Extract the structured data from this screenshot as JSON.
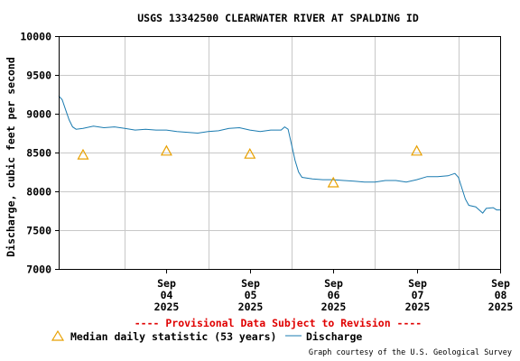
{
  "chart_data": {
    "type": "line",
    "title": "USGS 13342500 CLEARWATER RIVER AT SPALDING ID",
    "ylabel": "Discharge, cubic feet per second",
    "xlabel": "",
    "xlim": [
      "2025-09-03 05:00",
      "2025-09-08 12:00"
    ],
    "ylim": [
      7000,
      10000
    ],
    "grid": true,
    "yticks": [
      "7000",
      "7500",
      "8000",
      "8500",
      "9000",
      "9500",
      "10000"
    ],
    "xticks": [
      {
        "date": "2025-09-04",
        "label": [
          "Sep",
          "04",
          "2025"
        ]
      },
      {
        "date": "2025-09-05",
        "label": [
          "Sep",
          "05",
          "2025"
        ]
      },
      {
        "date": "2025-09-06",
        "label": [
          "Sep",
          "06",
          "2025"
        ]
      },
      {
        "date": "2025-09-07",
        "label": [
          "Sep",
          "07",
          "2025"
        ]
      },
      {
        "date": "2025-09-08",
        "label": [
          "Sep",
          "08",
          "2025"
        ]
      }
    ],
    "series": [
      {
        "name": "Discharge",
        "color": "#1a7bb0",
        "style": "line",
        "points": [
          [
            "2025-09-03 05:00",
            9230
          ],
          [
            "2025-09-03 06:00",
            9180
          ],
          [
            "2025-09-03 07:00",
            9050
          ],
          [
            "2025-09-03 08:00",
            8920
          ],
          [
            "2025-09-03 09:00",
            8830
          ],
          [
            "2025-09-03 10:00",
            8800
          ],
          [
            "2025-09-03 12:00",
            8810
          ],
          [
            "2025-09-03 15:00",
            8840
          ],
          [
            "2025-09-03 18:00",
            8820
          ],
          [
            "2025-09-03 21:00",
            8830
          ],
          [
            "2025-09-04 00:00",
            8810
          ],
          [
            "2025-09-04 03:00",
            8790
          ],
          [
            "2025-09-04 06:00",
            8800
          ],
          [
            "2025-09-04 09:00",
            8790
          ],
          [
            "2025-09-04 12:00",
            8790
          ],
          [
            "2025-09-04 15:00",
            8770
          ],
          [
            "2025-09-04 18:00",
            8760
          ],
          [
            "2025-09-04 21:00",
            8750
          ],
          [
            "2025-09-05 00:00",
            8770
          ],
          [
            "2025-09-05 03:00",
            8780
          ],
          [
            "2025-09-05 06:00",
            8810
          ],
          [
            "2025-09-05 09:00",
            8820
          ],
          [
            "2025-09-05 12:00",
            8790
          ],
          [
            "2025-09-05 15:00",
            8770
          ],
          [
            "2025-09-05 18:00",
            8790
          ],
          [
            "2025-09-05 21:00",
            8790
          ],
          [
            "2025-09-05 22:00",
            8830
          ],
          [
            "2025-09-05 23:00",
            8800
          ],
          [
            "2025-09-06 00:00",
            8600
          ],
          [
            "2025-09-06 01:00",
            8400
          ],
          [
            "2025-09-06 02:00",
            8250
          ],
          [
            "2025-09-06 03:00",
            8180
          ],
          [
            "2025-09-06 06:00",
            8160
          ],
          [
            "2025-09-06 09:00",
            8150
          ],
          [
            "2025-09-06 12:00",
            8150
          ],
          [
            "2025-09-06 15:00",
            8140
          ],
          [
            "2025-09-06 18:00",
            8130
          ],
          [
            "2025-09-06 21:00",
            8120
          ],
          [
            "2025-09-07 00:00",
            8120
          ],
          [
            "2025-09-07 03:00",
            8140
          ],
          [
            "2025-09-07 06:00",
            8140
          ],
          [
            "2025-09-07 09:00",
            8120
          ],
          [
            "2025-09-07 12:00",
            8150
          ],
          [
            "2025-09-07 15:00",
            8190
          ],
          [
            "2025-09-07 18:00",
            8190
          ],
          [
            "2025-09-07 21:00",
            8200
          ],
          [
            "2025-09-07 23:00",
            8230
          ],
          [
            "2025-09-08 00:00",
            8180
          ],
          [
            "2025-09-08 02:00",
            7900
          ],
          [
            "2025-09-08 03:00",
            7820
          ],
          [
            "2025-09-08 05:00",
            7800
          ],
          [
            "2025-09-08 07:00",
            7720
          ],
          [
            "2025-09-08 08:00",
            7780
          ],
          [
            "2025-09-08 10:00",
            7790
          ],
          [
            "2025-09-08 11:00",
            7760
          ],
          [
            "2025-09-08 12:00",
            7760
          ]
        ]
      },
      {
        "name": "Median daily statistic (53 years)",
        "color": "#e8a000",
        "style": "triangle",
        "points": [
          [
            "2025-09-03 12:00",
            8470
          ],
          [
            "2025-09-04 12:00",
            8520
          ],
          [
            "2025-09-05 12:00",
            8480
          ],
          [
            "2025-09-06 12:00",
            8110
          ],
          [
            "2025-09-07 12:00",
            8520
          ]
        ]
      }
    ],
    "legend": [
      {
        "label": "Median daily statistic (53 years)",
        "marker": "triangle",
        "color": "#e8a000"
      },
      {
        "label": "Discharge",
        "marker": "line",
        "color": "#1a7bb0"
      }
    ],
    "provisional_note": "---- Provisional Data Subject to Revision ----",
    "credit": "Graph courtesy of the U.S. Geological Survey"
  }
}
